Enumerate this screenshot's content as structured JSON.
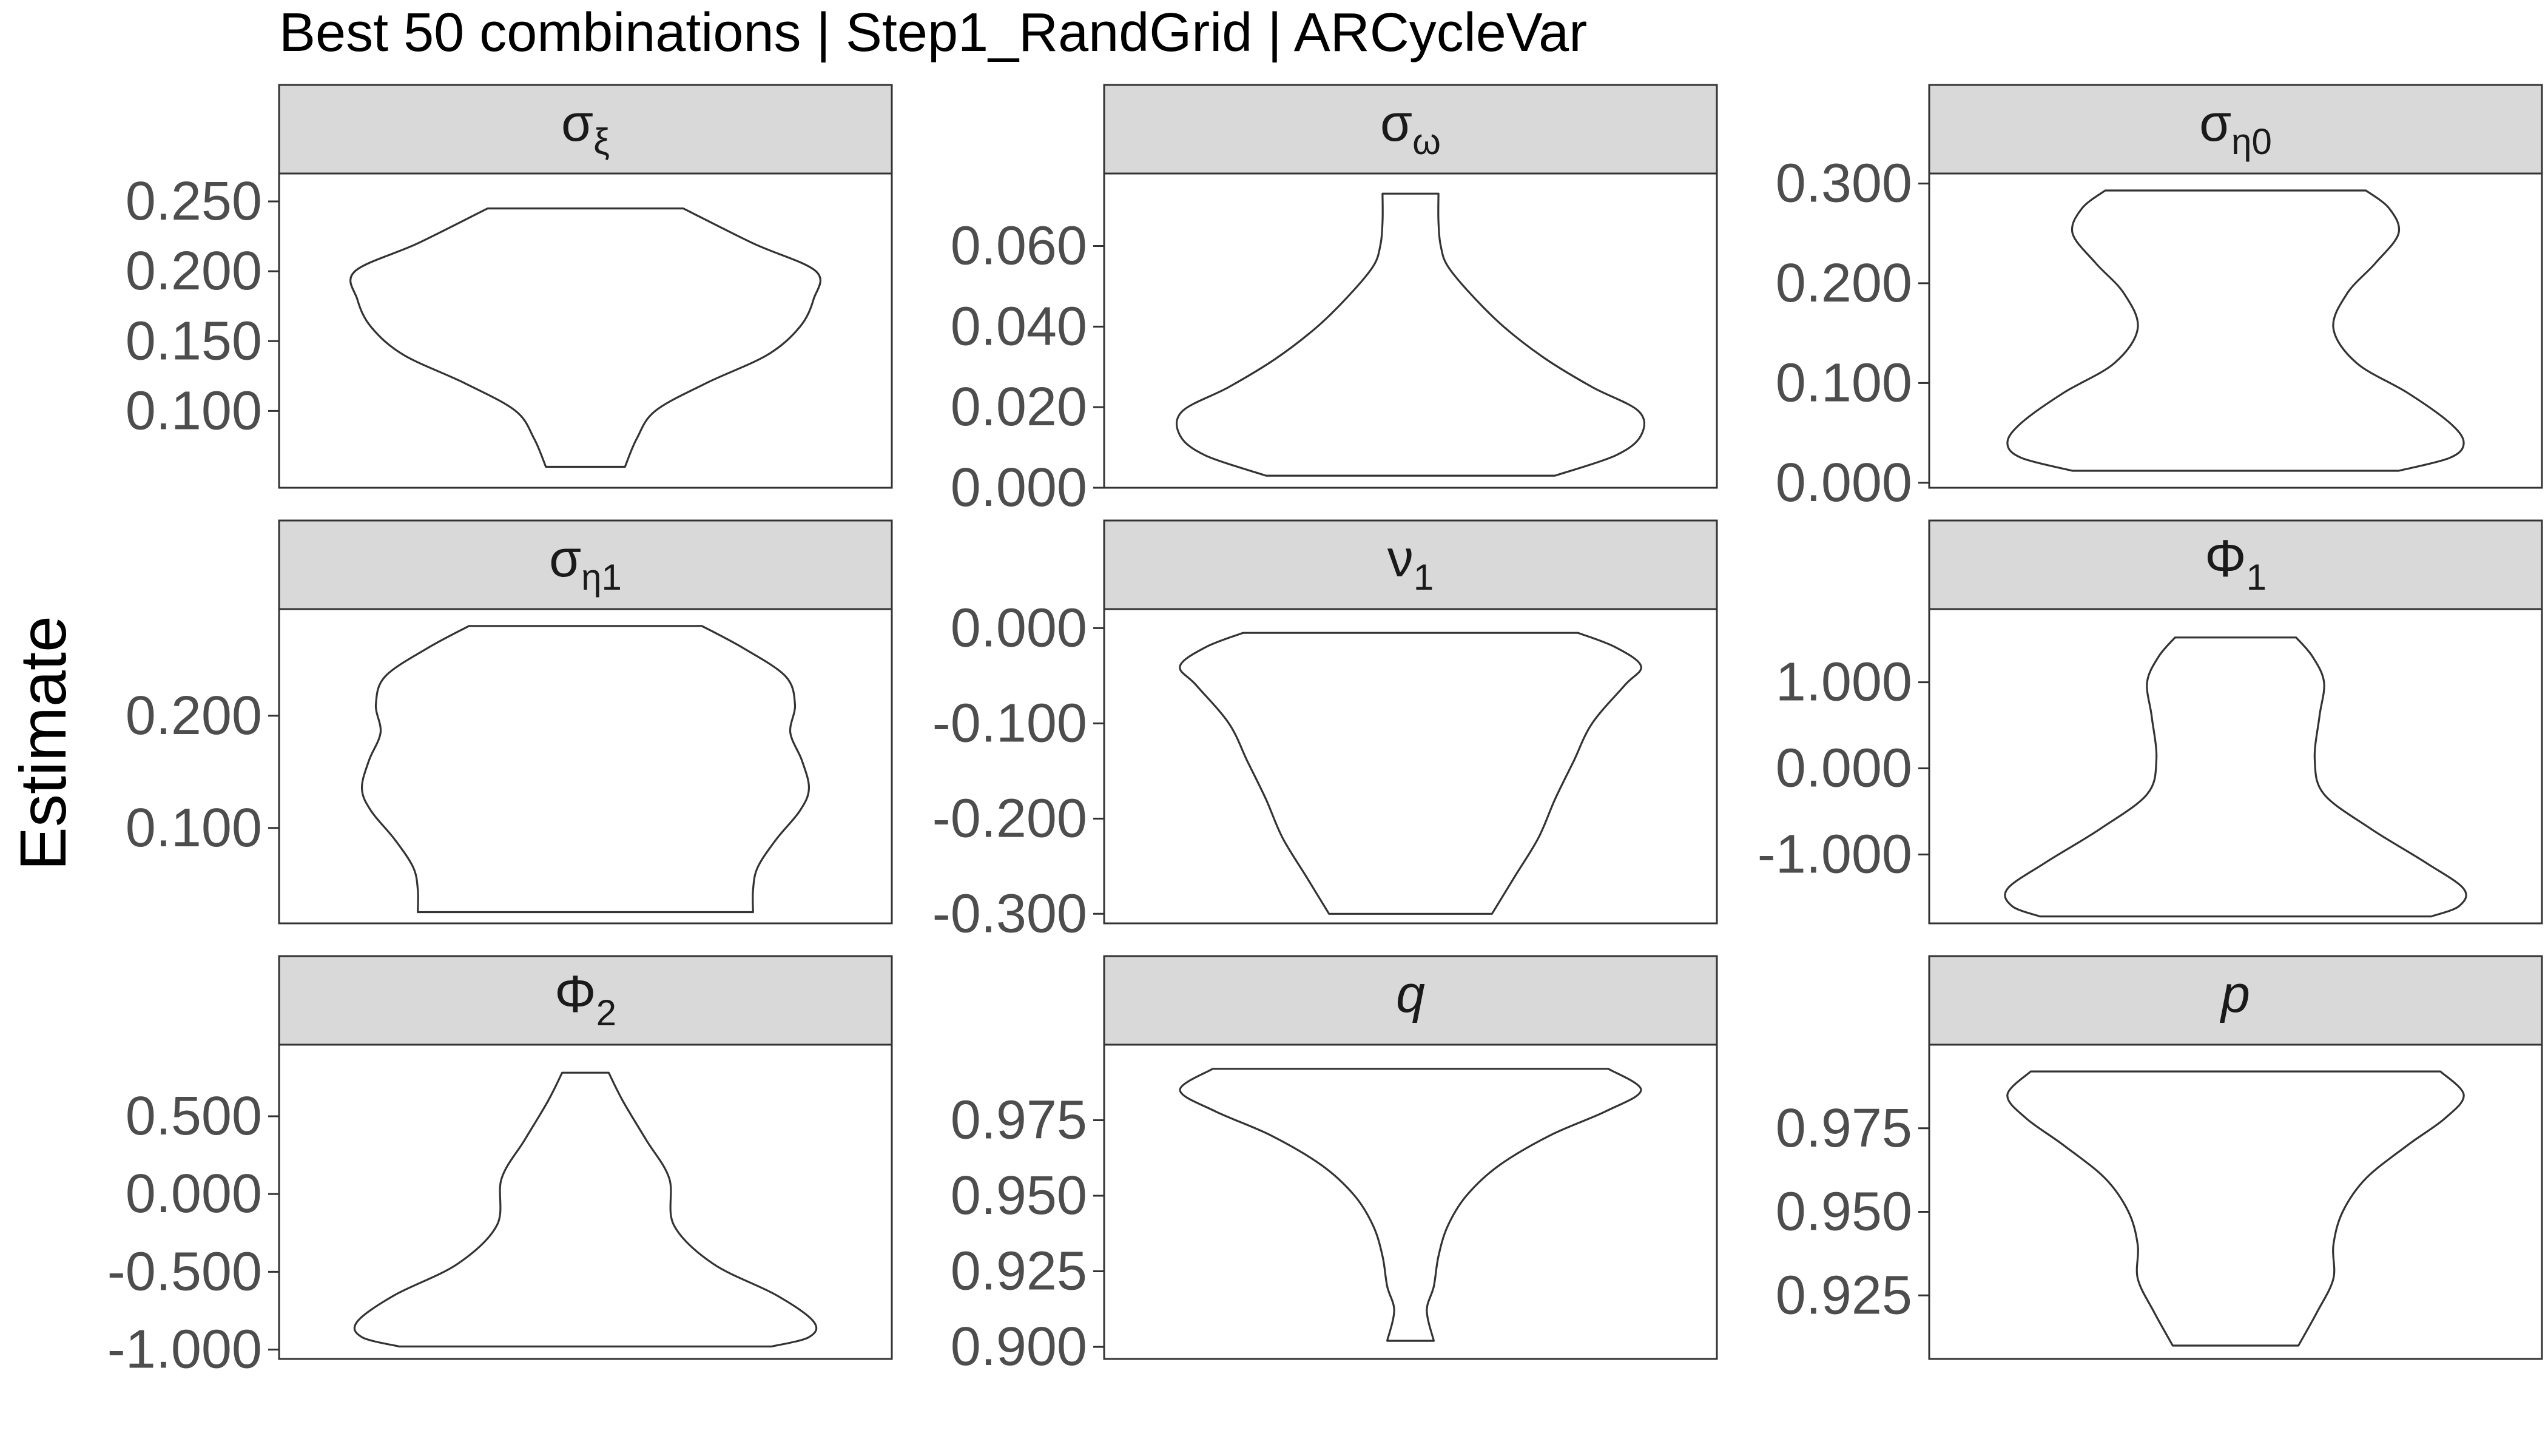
{
  "title": "Best 50 combinations | Step1_RandGrid | ARCycleVar",
  "ylabel": "Estimate",
  "chart_data": [
    {
      "type": "violin",
      "panel": "σ_ξ",
      "label_main": "σ",
      "label_sub": "ξ",
      "label_italic": false,
      "ylim": [
        0.045,
        0.27
      ],
      "yticks": [
        0.1,
        0.15,
        0.2,
        0.25
      ],
      "ytick_labels": [
        "0.100",
        "0.150",
        "0.200",
        "0.250"
      ],
      "y": [
        0.06,
        0.08,
        0.1,
        0.12,
        0.14,
        0.16,
        0.18,
        0.2,
        0.22,
        0.245
      ],
      "width": [
        0.17,
        0.22,
        0.3,
        0.52,
        0.78,
        0.92,
        0.98,
        0.99,
        0.72,
        0.42
      ]
    },
    {
      "type": "violin",
      "panel": "σ_ω",
      "label_main": "σ",
      "label_sub": "ω",
      "label_italic": false,
      "ylim": [
        0.0,
        0.078
      ],
      "yticks": [
        0.0,
        0.02,
        0.04,
        0.06
      ],
      "ytick_labels": [
        "0.000",
        "0.020",
        "0.040",
        "0.060"
      ],
      "y": [
        0.003,
        0.008,
        0.013,
        0.019,
        0.025,
        0.032,
        0.04,
        0.048,
        0.055,
        0.06,
        0.066,
        0.073
      ],
      "width": [
        0.62,
        0.88,
        0.99,
        0.98,
        0.78,
        0.58,
        0.4,
        0.26,
        0.16,
        0.13,
        0.12,
        0.12
      ]
    },
    {
      "type": "violin",
      "panel": "σ_η0",
      "label_main": "σ",
      "label_sub": "η0",
      "label_italic": false,
      "ylim": [
        -0.005,
        0.31
      ],
      "yticks": [
        0.0,
        0.1,
        0.2,
        0.3
      ],
      "ytick_labels": [
        "0.000",
        "0.100",
        "0.200",
        "0.300"
      ],
      "y": [
        0.012,
        0.025,
        0.04,
        0.06,
        0.09,
        0.12,
        0.155,
        0.19,
        0.22,
        0.25,
        0.275,
        0.293
      ],
      "width": [
        0.7,
        0.92,
        0.98,
        0.92,
        0.74,
        0.52,
        0.42,
        0.48,
        0.6,
        0.7,
        0.66,
        0.56
      ]
    },
    {
      "type": "violin",
      "panel": "σ_η1",
      "label_main": "σ",
      "label_sub": "η1",
      "label_italic": false,
      "ylim": [
        0.015,
        0.295
      ],
      "yticks": [
        0.1,
        0.2
      ],
      "ytick_labels": [
        "0.100",
        "0.200"
      ],
      "y": [
        0.025,
        0.045,
        0.065,
        0.09,
        0.115,
        0.135,
        0.16,
        0.185,
        0.21,
        0.235,
        0.26,
        0.28
      ],
      "width": [
        0.72,
        0.72,
        0.74,
        0.82,
        0.92,
        0.96,
        0.93,
        0.88,
        0.9,
        0.86,
        0.68,
        0.5
      ]
    },
    {
      "type": "violin",
      "panel": "ν_1",
      "label_main": "ν",
      "label_sub": "1",
      "label_italic": false,
      "ylim": [
        -0.31,
        0.02
      ],
      "yticks": [
        -0.3,
        -0.2,
        -0.1,
        0.0
      ],
      "ytick_labels": [
        "-0.300",
        "-0.200",
        "-0.100",
        "0.000"
      ],
      "y": [
        -0.3,
        -0.26,
        -0.22,
        -0.18,
        -0.14,
        -0.1,
        -0.06,
        -0.04,
        -0.02,
        -0.005
      ],
      "width": [
        0.35,
        0.45,
        0.55,
        0.62,
        0.7,
        0.78,
        0.92,
        0.99,
        0.88,
        0.72
      ]
    },
    {
      "type": "violin",
      "panel": "Φ_1",
      "label_main": "Φ",
      "label_sub": "1",
      "label_italic": false,
      "ylim": [
        -1.8,
        1.85
      ],
      "yticks": [
        -1.0,
        0.0,
        1.0
      ],
      "ytick_labels": [
        "-1.000",
        "0.000",
        "1.000"
      ],
      "y": [
        -1.72,
        -1.6,
        -1.4,
        -1.1,
        -0.7,
        -0.3,
        0.1,
        0.6,
        1.0,
        1.3,
        1.52
      ],
      "width": [
        0.84,
        0.96,
        0.98,
        0.82,
        0.58,
        0.38,
        0.34,
        0.36,
        0.38,
        0.33,
        0.26
      ]
    },
    {
      "type": "violin",
      "panel": "Φ_2",
      "label_main": "Φ",
      "label_sub": "2",
      "label_italic": false,
      "ylim": [
        -1.06,
        0.96
      ],
      "yticks": [
        -1.0,
        -0.5,
        0.0,
        0.5
      ],
      "ytick_labels": [
        "-1.000",
        "-0.500",
        "0.000",
        "0.500"
      ],
      "y": [
        -0.98,
        -0.92,
        -0.82,
        -0.65,
        -0.45,
        -0.2,
        0.1,
        0.35,
        0.6,
        0.78
      ],
      "width": [
        0.8,
        0.96,
        0.98,
        0.82,
        0.55,
        0.38,
        0.36,
        0.26,
        0.16,
        0.1
      ]
    },
    {
      "type": "violin",
      "panel": "q",
      "label_main": "q",
      "label_sub": "",
      "label_italic": true,
      "ylim": [
        0.896,
        1.0
      ],
      "yticks": [
        0.9,
        0.925,
        0.95,
        0.975
      ],
      "ytick_labels": [
        "0.900",
        "0.925",
        "0.950",
        "0.975"
      ],
      "y": [
        0.902,
        0.912,
        0.92,
        0.93,
        0.94,
        0.95,
        0.96,
        0.97,
        0.978,
        0.985,
        0.992
      ],
      "width": [
        0.1,
        0.07,
        0.1,
        0.12,
        0.16,
        0.24,
        0.38,
        0.6,
        0.84,
        0.99,
        0.85
      ]
    },
    {
      "type": "violin",
      "panel": "p",
      "label_main": "p",
      "label_sub": "",
      "label_italic": true,
      "ylim": [
        0.906,
        1.0
      ],
      "yticks": [
        0.925,
        0.95,
        0.975
      ],
      "ytick_labels": [
        "0.925",
        "0.950",
        "0.975"
      ],
      "y": [
        0.91,
        0.92,
        0.93,
        0.94,
        0.95,
        0.96,
        0.97,
        0.978,
        0.985,
        0.992
      ],
      "width": [
        0.27,
        0.35,
        0.42,
        0.42,
        0.46,
        0.56,
        0.74,
        0.9,
        0.98,
        0.88
      ]
    }
  ]
}
